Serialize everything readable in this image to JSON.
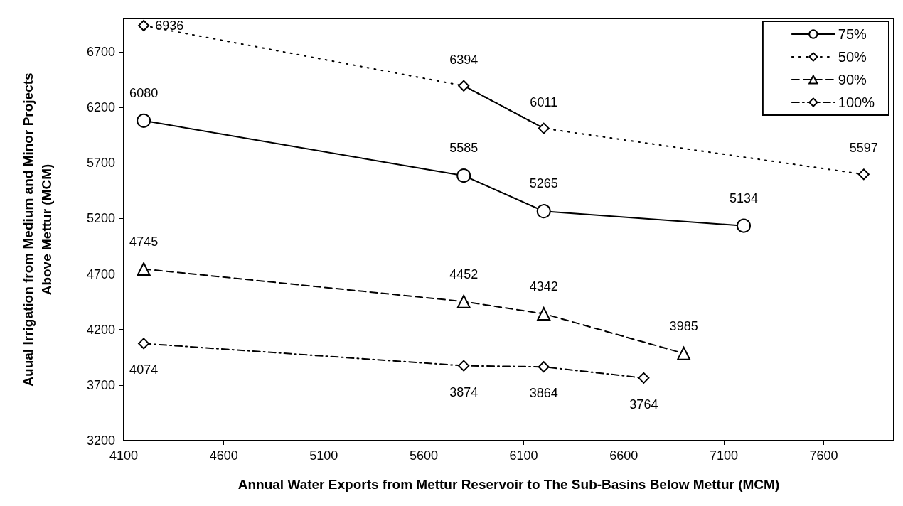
{
  "chart_data": {
    "type": "line",
    "xlabel": "Annual Water Exports from Mettur Reservoir to The Sub-Basins Below Mettur (MCM)",
    "ylabel": "Auual Irrigation from Medium and Minor Projects\nAbove Mettur (MCM)",
    "xlim": [
      4100,
      7950
    ],
    "xticks": [
      4100,
      4600,
      5100,
      5600,
      6100,
      6600,
      7100,
      7600
    ],
    "ylim": [
      3200,
      7000
    ],
    "yticks": [
      3200,
      3700,
      4200,
      4700,
      5200,
      5700,
      6200,
      6700
    ],
    "grid": false,
    "legend": "top right",
    "data_labels": true,
    "series": [
      {
        "name": "75%",
        "color": "#000000",
        "marker": "circle",
        "line_style": "solid",
        "x": [
          4200,
          5800,
          6200,
          7200
        ],
        "values": [
          6080,
          5585,
          5265,
          5134
        ]
      },
      {
        "name": "50%",
        "color": "#000000",
        "marker": "diamond",
        "line_style": "dotted",
        "x": [
          4200,
          5800,
          6200,
          7800
        ],
        "values": [
          6936,
          6394,
          6011,
          5597
        ]
      },
      {
        "name": "90%",
        "color": "#000000",
        "marker": "triangle",
        "line_style": "dashed",
        "x": [
          4200,
          5800,
          6200,
          6900
        ],
        "values": [
          4745,
          4452,
          4342,
          3985
        ]
      },
      {
        "name": "100%",
        "color": "#000000",
        "marker": "diamond",
        "line_style": "dashdot",
        "x": [
          4200,
          5800,
          6200,
          6700
        ],
        "values": [
          4074,
          3874,
          3864,
          3764
        ]
      },
      {
        "color": "#000000",
        "marker": "none",
        "line_style": "solid",
        "x": [
          5800,
          6200
        ],
        "values": [
          6394,
          6011
        ],
        "value_labels": [
          null,
          null
        ]
      }
    ]
  }
}
